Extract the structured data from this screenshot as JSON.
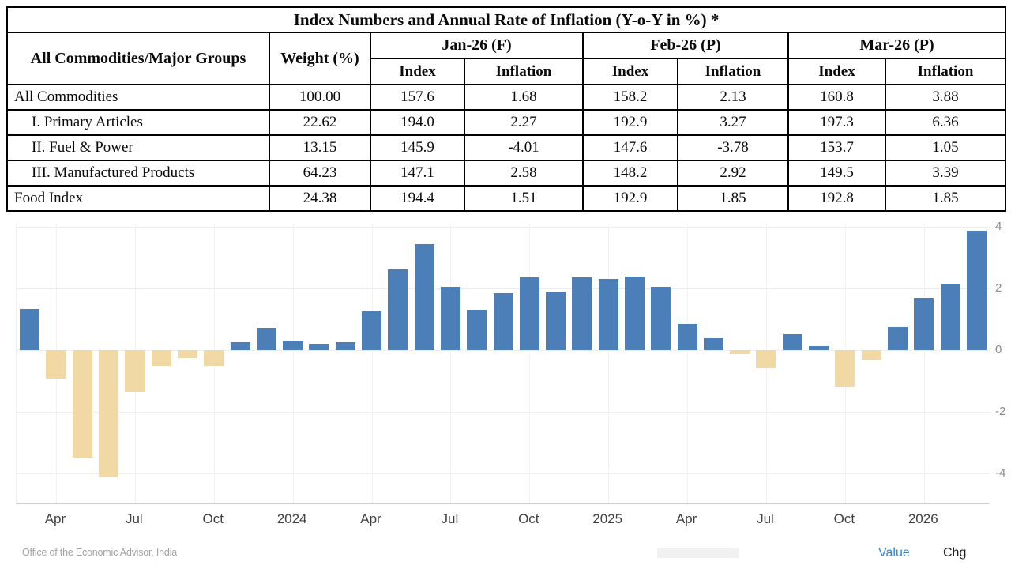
{
  "table": {
    "title": "Index Numbers and Annual Rate of Inflation (Y-o-Y in %) *",
    "col1_header": "All Commodities/Major Groups",
    "col2_header": "Weight (%)",
    "month_groups": [
      "Jan-26 (F)",
      "Feb-26 (P)",
      "Mar-26 (P)"
    ],
    "sub_headers": [
      "Index",
      "Inflation"
    ],
    "rows": [
      {
        "label": "All Commodities",
        "weight": "100.00",
        "values": [
          "157.6",
          "1.68",
          "158.2",
          "2.13",
          "160.8",
          "3.88"
        ]
      },
      {
        "label": "I. Primary Articles",
        "weight": "22.62",
        "values": [
          "194.0",
          "2.27",
          "192.9",
          "3.27",
          "197.3",
          "6.36"
        ]
      },
      {
        "label": "II. Fuel & Power",
        "weight": "13.15",
        "values": [
          "145.9",
          "-4.01",
          "147.6",
          "-3.78",
          "153.7",
          "1.05"
        ]
      },
      {
        "label": "III. Manufactured Products",
        "weight": "64.23",
        "values": [
          "147.1",
          "2.58",
          "148.2",
          "2.92",
          "149.5",
          "3.39"
        ]
      },
      {
        "label": "Food Index",
        "weight": "24.38",
        "values": [
          "194.4",
          "1.51",
          "192.9",
          "1.85",
          "192.8",
          "1.85"
        ]
      }
    ]
  },
  "chart_data": {
    "type": "bar",
    "title": "",
    "xlabel": "",
    "ylabel": "",
    "x": [
      "Mar-23",
      "Apr-23",
      "May-23",
      "Jun-23",
      "Jul-23",
      "Aug-23",
      "Sep-23",
      "Oct-23",
      "Nov-23",
      "Dec-23",
      "Jan-24",
      "Feb-24",
      "Mar-24",
      "Apr-24",
      "May-24",
      "Jun-24",
      "Jul-24",
      "Aug-24",
      "Sep-24",
      "Oct-24",
      "Nov-24",
      "Dec-24",
      "Jan-25",
      "Feb-25",
      "Mar-25",
      "Apr-25",
      "May-25",
      "Jun-25",
      "Jul-25",
      "Aug-25",
      "Sep-25",
      "Oct-25",
      "Nov-25",
      "Dec-25",
      "Jan-26",
      "Feb-26",
      "Mar-26"
    ],
    "values": [
      1.34,
      -0.92,
      -3.48,
      -4.12,
      -1.36,
      -0.52,
      -0.26,
      -0.52,
      0.26,
      0.73,
      0.27,
      0.2,
      0.26,
      1.26,
      2.61,
      3.43,
      2.04,
      1.31,
      1.84,
      2.36,
      1.89,
      2.37,
      2.31,
      2.38,
      2.05,
      0.85,
      0.39,
      -0.13,
      -0.58,
      0.52,
      0.13,
      -1.21,
      -0.3,
      0.75,
      1.68,
      2.13,
      3.88
    ],
    "ylim": [
      -5.0,
      4.1
    ],
    "y_ticks": [
      4,
      2,
      0,
      -2,
      -4
    ],
    "x_ticks": [
      {
        "index": 1,
        "label": "Apr"
      },
      {
        "index": 4,
        "label": "Jul"
      },
      {
        "index": 7,
        "label": "Oct"
      },
      {
        "index": 10,
        "label": "2024"
      },
      {
        "index": 13,
        "label": "Apr"
      },
      {
        "index": 16,
        "label": "Jul"
      },
      {
        "index": 19,
        "label": "Oct"
      },
      {
        "index": 22,
        "label": "2025"
      },
      {
        "index": 25,
        "label": "Apr"
      },
      {
        "index": 28,
        "label": "Jul"
      },
      {
        "index": 31,
        "label": "Oct"
      },
      {
        "index": 34,
        "label": "2026"
      }
    ],
    "positive_color": "#4c7eb8",
    "negative_color": "#f0d9a5",
    "grid": true,
    "legend_position": "bottom-right"
  },
  "footer": {
    "source": "Office of the Economic Advisor, India",
    "legend": [
      {
        "label": "Value",
        "color": "#2b87e0",
        "active": true
      },
      {
        "label": "Chg",
        "color": "#1c1c1c",
        "active": false
      }
    ]
  }
}
